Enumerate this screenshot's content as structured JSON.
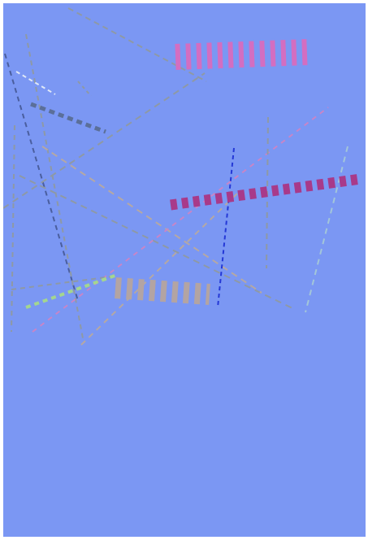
{
  "canvas": {
    "background_color": "#7b97f3",
    "frame_color": "#ffffff"
  },
  "strokes": [
    {
      "name": "pink-thick-dash-top",
      "color": "#d36ec1"
    },
    {
      "name": "magenta-thick-dash-right",
      "color": "#a83a8a"
    },
    {
      "name": "tan-thick-dash-middle",
      "color": "#b3a4a3"
    },
    {
      "name": "navy-dash-left",
      "color": "#4a5e9e"
    },
    {
      "name": "blue-dash-vertical",
      "color": "#2438d6"
    },
    {
      "name": "slate-dash-short",
      "color": "#5b6f99"
    },
    {
      "name": "grey-dash-long",
      "color": "#8e99a5"
    },
    {
      "name": "lightgreen-dash",
      "color": "#a4d68f"
    },
    {
      "name": "pink-dash-diagonal",
      "color": "#c985c7"
    },
    {
      "name": "lightblue-dash-right",
      "color": "#a3c6d9"
    },
    {
      "name": "white-dash",
      "color": "#dfe8f7"
    },
    {
      "name": "tan-dash",
      "color": "#b5a8a4"
    }
  ]
}
